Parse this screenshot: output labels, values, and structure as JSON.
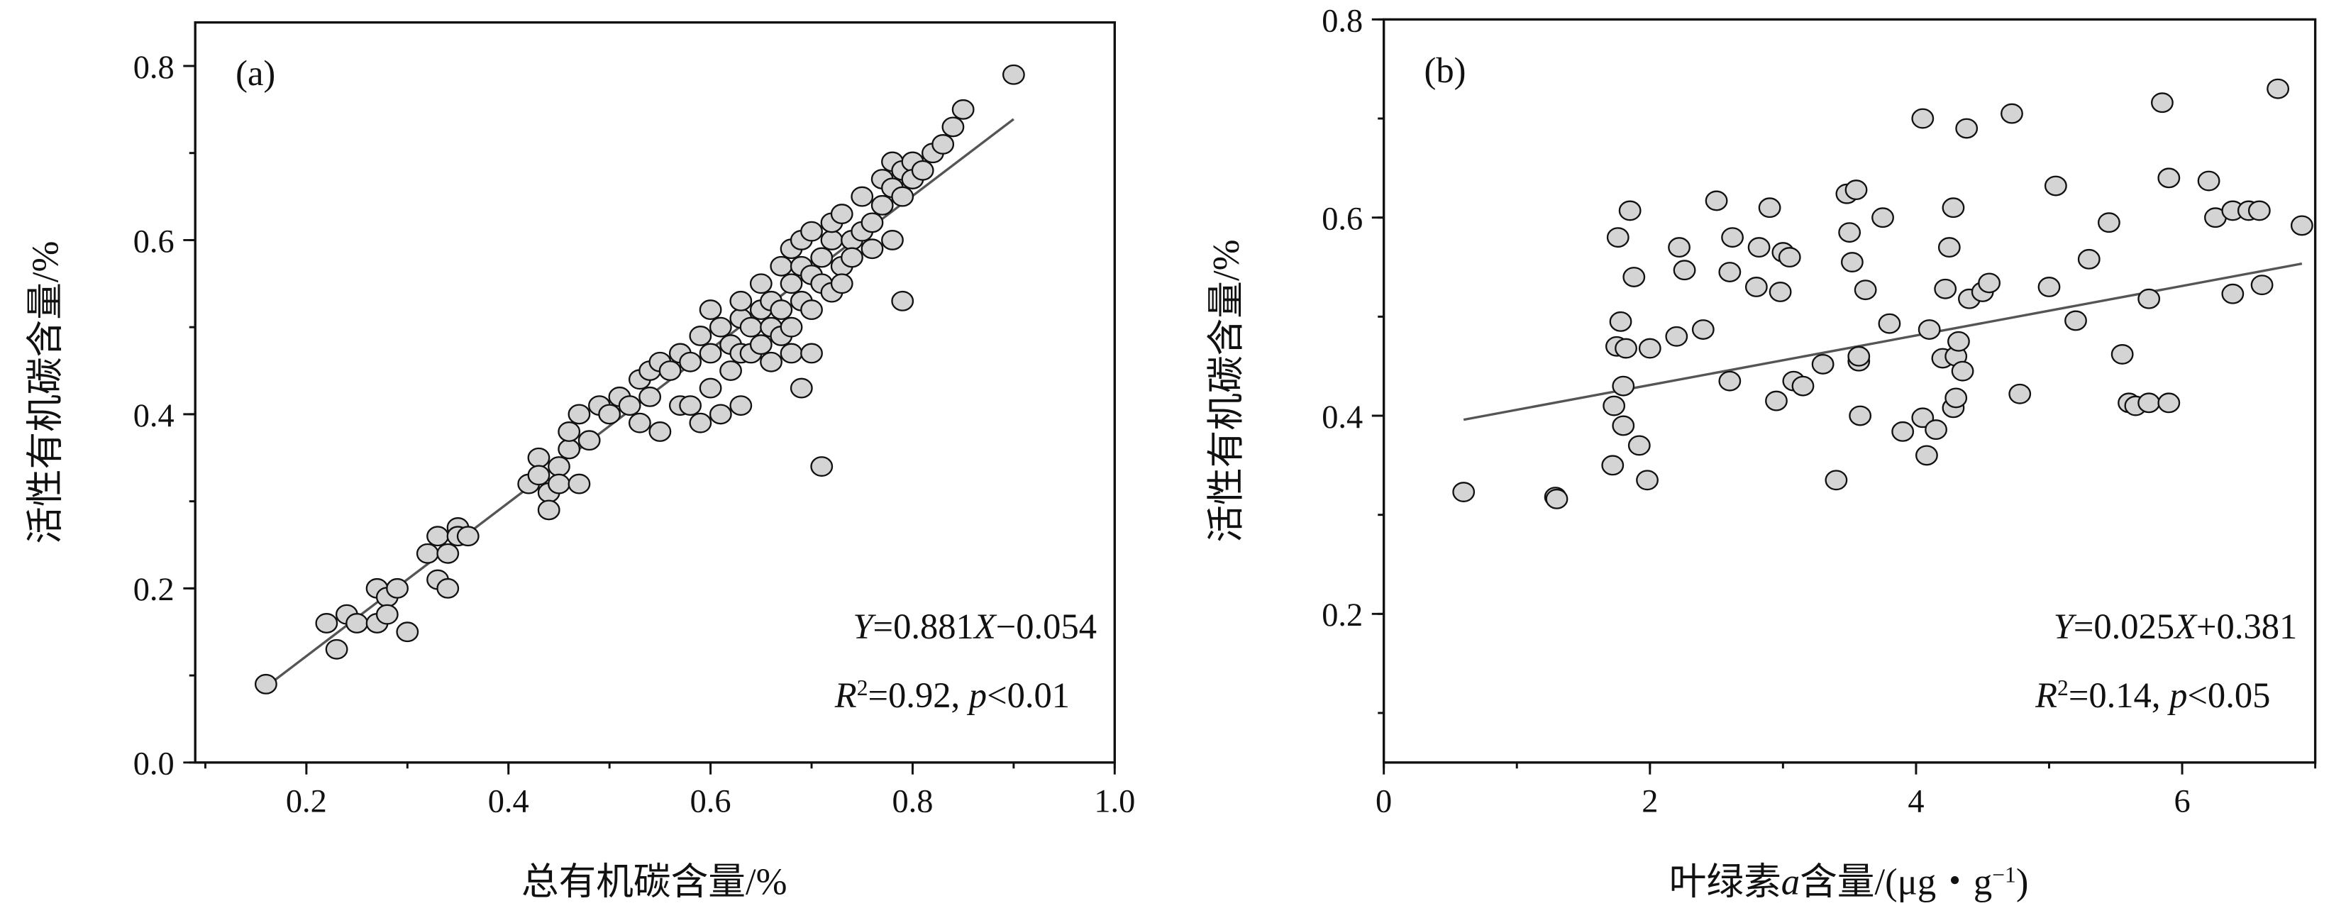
{
  "chart_data": [
    {
      "type": "scatter",
      "panel_label": "(a)",
      "xlabel": "总有机碳含量/%",
      "ylabel": "活性有机碳含量/%",
      "xlim": [
        0.09,
        1.0
      ],
      "ylim": [
        0,
        0.85
      ],
      "xticks": [
        "0.2",
        "0.4",
        "0.6",
        "0.8",
        "1.0"
      ],
      "yticks": [
        "0.0",
        "0.2",
        "0.4",
        "0.6",
        "0.8"
      ],
      "fit": {
        "slope": 0.881,
        "intercept": -0.054,
        "x_range": [
          0.16,
          0.9
        ]
      },
      "equation": [
        [
          "Y",
          true
        ],
        [
          "=0.881",
          false
        ],
        [
          "X",
          true
        ],
        [
          "−0.054",
          false
        ]
      ],
      "stats": [
        [
          "R",
          true
        ],
        [
          "2",
          false,
          "sup"
        ],
        [
          "=0.92, ",
          false
        ],
        [
          "p",
          true
        ],
        [
          "<0.01",
          false
        ]
      ],
      "points": [
        [
          0.16,
          0.09
        ],
        [
          0.22,
          0.16
        ],
        [
          0.23,
          0.13
        ],
        [
          0.24,
          0.17
        ],
        [
          0.25,
          0.16
        ],
        [
          0.27,
          0.2
        ],
        [
          0.27,
          0.16
        ],
        [
          0.28,
          0.19
        ],
        [
          0.28,
          0.17
        ],
        [
          0.29,
          0.2
        ],
        [
          0.3,
          0.15
        ],
        [
          0.32,
          0.24
        ],
        [
          0.33,
          0.26
        ],
        [
          0.33,
          0.21
        ],
        [
          0.34,
          0.24
        ],
        [
          0.34,
          0.2
        ],
        [
          0.35,
          0.27
        ],
        [
          0.35,
          0.26
        ],
        [
          0.36,
          0.26
        ],
        [
          0.42,
          0.32
        ],
        [
          0.43,
          0.35
        ],
        [
          0.43,
          0.33
        ],
        [
          0.44,
          0.31
        ],
        [
          0.44,
          0.29
        ],
        [
          0.45,
          0.34
        ],
        [
          0.45,
          0.32
        ],
        [
          0.46,
          0.36
        ],
        [
          0.46,
          0.38
        ],
        [
          0.47,
          0.32
        ],
        [
          0.47,
          0.4
        ],
        [
          0.48,
          0.37
        ],
        [
          0.49,
          0.41
        ],
        [
          0.5,
          0.4
        ],
        [
          0.51,
          0.42
        ],
        [
          0.52,
          0.41
        ],
        [
          0.53,
          0.39
        ],
        [
          0.53,
          0.44
        ],
        [
          0.54,
          0.42
        ],
        [
          0.54,
          0.45
        ],
        [
          0.55,
          0.38
        ],
        [
          0.55,
          0.46
        ],
        [
          0.56,
          0.45
        ],
        [
          0.57,
          0.41
        ],
        [
          0.57,
          0.47
        ],
        [
          0.58,
          0.46
        ],
        [
          0.58,
          0.41
        ],
        [
          0.59,
          0.49
        ],
        [
          0.59,
          0.39
        ],
        [
          0.6,
          0.52
        ],
        [
          0.6,
          0.47
        ],
        [
          0.6,
          0.43
        ],
        [
          0.61,
          0.4
        ],
        [
          0.61,
          0.5
        ],
        [
          0.62,
          0.48
        ],
        [
          0.62,
          0.45
        ],
        [
          0.63,
          0.51
        ],
        [
          0.63,
          0.47
        ],
        [
          0.63,
          0.53
        ],
        [
          0.63,
          0.41
        ],
        [
          0.64,
          0.5
        ],
        [
          0.64,
          0.47
        ],
        [
          0.65,
          0.52
        ],
        [
          0.65,
          0.48
        ],
        [
          0.65,
          0.55
        ],
        [
          0.66,
          0.5
        ],
        [
          0.66,
          0.46
        ],
        [
          0.66,
          0.53
        ],
        [
          0.67,
          0.57
        ],
        [
          0.67,
          0.52
        ],
        [
          0.67,
          0.49
        ],
        [
          0.68,
          0.55
        ],
        [
          0.68,
          0.5
        ],
        [
          0.68,
          0.47
        ],
        [
          0.68,
          0.59
        ],
        [
          0.69,
          0.57
        ],
        [
          0.69,
          0.53
        ],
        [
          0.69,
          0.43
        ],
        [
          0.69,
          0.6
        ],
        [
          0.7,
          0.56
        ],
        [
          0.7,
          0.52
        ],
        [
          0.7,
          0.47
        ],
        [
          0.7,
          0.61
        ],
        [
          0.71,
          0.34
        ],
        [
          0.71,
          0.58
        ],
        [
          0.71,
          0.55
        ],
        [
          0.72,
          0.6
        ],
        [
          0.72,
          0.54
        ],
        [
          0.72,
          0.62
        ],
        [
          0.73,
          0.57
        ],
        [
          0.73,
          0.63
        ],
        [
          0.73,
          0.55
        ],
        [
          0.74,
          0.6
        ],
        [
          0.74,
          0.58
        ],
        [
          0.75,
          0.61
        ],
        [
          0.75,
          0.65
        ],
        [
          0.76,
          0.62
        ],
        [
          0.76,
          0.59
        ],
        [
          0.77,
          0.64
        ],
        [
          0.77,
          0.67
        ],
        [
          0.78,
          0.66
        ],
        [
          0.78,
          0.69
        ],
        [
          0.78,
          0.6
        ],
        [
          0.79,
          0.53
        ],
        [
          0.79,
          0.65
        ],
        [
          0.79,
          0.68
        ],
        [
          0.8,
          0.69
        ],
        [
          0.8,
          0.67
        ],
        [
          0.81,
          0.68
        ],
        [
          0.82,
          0.7
        ],
        [
          0.83,
          0.71
        ],
        [
          0.84,
          0.73
        ],
        [
          0.85,
          0.75
        ],
        [
          0.9,
          0.79
        ]
      ]
    },
    {
      "type": "scatter",
      "panel_label": "(b)",
      "xlabel": [
        [
          "叶绿素",
          false
        ],
        [
          "a",
          true
        ],
        [
          "含量/(μg・g",
          false
        ],
        [
          "−1",
          false,
          "sup"
        ],
        [
          ")",
          false
        ]
      ],
      "ylabel": "活性有机碳含量/%",
      "xlim": [
        0,
        7.0
      ],
      "ylim": [
        0.05,
        0.8
      ],
      "xticks": [
        "0",
        "2",
        "4",
        "6"
      ],
      "yticks": [
        "0.2",
        "0.4",
        "0.6",
        "0.8"
      ],
      "fit": {
        "slope": 0.025,
        "intercept": 0.381,
        "x_range": [
          0.6,
          6.9
        ]
      },
      "equation": [
        [
          "Y",
          true
        ],
        [
          "=0.025",
          false
        ],
        [
          "X",
          true
        ],
        [
          "+0.381",
          false
        ]
      ],
      "stats": [
        [
          "R",
          true
        ],
        [
          "2",
          false,
          "sup"
        ],
        [
          "=0.14, ",
          false
        ],
        [
          "p",
          true
        ],
        [
          "<0.05",
          false
        ]
      ],
      "points": [
        [
          0.6,
          0.323
        ],
        [
          1.29,
          0.318
        ],
        [
          1.3,
          0.316
        ],
        [
          1.72,
          0.35
        ],
        [
          1.73,
          0.41
        ],
        [
          1.75,
          0.47
        ],
        [
          1.76,
          0.58
        ],
        [
          1.78,
          0.495
        ],
        [
          1.8,
          0.43
        ],
        [
          1.8,
          0.39
        ],
        [
          1.82,
          0.468
        ],
        [
          1.85,
          0.607
        ],
        [
          1.88,
          0.54
        ],
        [
          1.92,
          0.37
        ],
        [
          1.98,
          0.335
        ],
        [
          2.0,
          0.468
        ],
        [
          2.2,
          0.48
        ],
        [
          2.22,
          0.57
        ],
        [
          2.26,
          0.547
        ],
        [
          2.4,
          0.487
        ],
        [
          2.5,
          0.617
        ],
        [
          2.6,
          0.545
        ],
        [
          2.6,
          0.435
        ],
        [
          2.62,
          0.58
        ],
        [
          2.8,
          0.53
        ],
        [
          2.82,
          0.57
        ],
        [
          2.9,
          0.61
        ],
        [
          2.95,
          0.415
        ],
        [
          2.98,
          0.525
        ],
        [
          3.0,
          0.565
        ],
        [
          3.05,
          0.56
        ],
        [
          3.08,
          0.435
        ],
        [
          3.15,
          0.43
        ],
        [
          3.3,
          0.452
        ],
        [
          3.4,
          0.335
        ],
        [
          3.48,
          0.624
        ],
        [
          3.5,
          0.585
        ],
        [
          3.52,
          0.555
        ],
        [
          3.55,
          0.628
        ],
        [
          3.57,
          0.455
        ],
        [
          3.57,
          0.46
        ],
        [
          3.58,
          0.4
        ],
        [
          3.62,
          0.527
        ],
        [
          3.75,
          0.6
        ],
        [
          3.8,
          0.493
        ],
        [
          3.9,
          0.384
        ],
        [
          4.05,
          0.7
        ],
        [
          4.05,
          0.398
        ],
        [
          4.08,
          0.36
        ],
        [
          4.1,
          0.487
        ],
        [
          4.15,
          0.386
        ],
        [
          4.2,
          0.458
        ],
        [
          4.22,
          0.528
        ],
        [
          4.25,
          0.57
        ],
        [
          4.28,
          0.61
        ],
        [
          4.28,
          0.408
        ],
        [
          4.3,
          0.418
        ],
        [
          4.3,
          0.46
        ],
        [
          4.32,
          0.475
        ],
        [
          4.35,
          0.445
        ],
        [
          4.38,
          0.69
        ],
        [
          4.4,
          0.518
        ],
        [
          4.5,
          0.525
        ],
        [
          4.55,
          0.534
        ],
        [
          4.72,
          0.705
        ],
        [
          4.78,
          0.422
        ],
        [
          5.0,
          0.53
        ],
        [
          5.05,
          0.632
        ],
        [
          5.2,
          0.496
        ],
        [
          5.3,
          0.558
        ],
        [
          5.45,
          0.595
        ],
        [
          5.55,
          0.462
        ],
        [
          5.6,
          0.413
        ],
        [
          5.65,
          0.41
        ],
        [
          5.75,
          0.413
        ],
        [
          5.75,
          0.518
        ],
        [
          5.85,
          0.716
        ],
        [
          5.9,
          0.413
        ],
        [
          5.9,
          0.64
        ],
        [
          6.2,
          0.637
        ],
        [
          6.25,
          0.6
        ],
        [
          6.38,
          0.607
        ],
        [
          6.38,
          0.523
        ],
        [
          6.5,
          0.607
        ],
        [
          6.58,
          0.607
        ],
        [
          6.6,
          0.532
        ],
        [
          6.72,
          0.73
        ],
        [
          6.9,
          0.592
        ]
      ]
    }
  ]
}
